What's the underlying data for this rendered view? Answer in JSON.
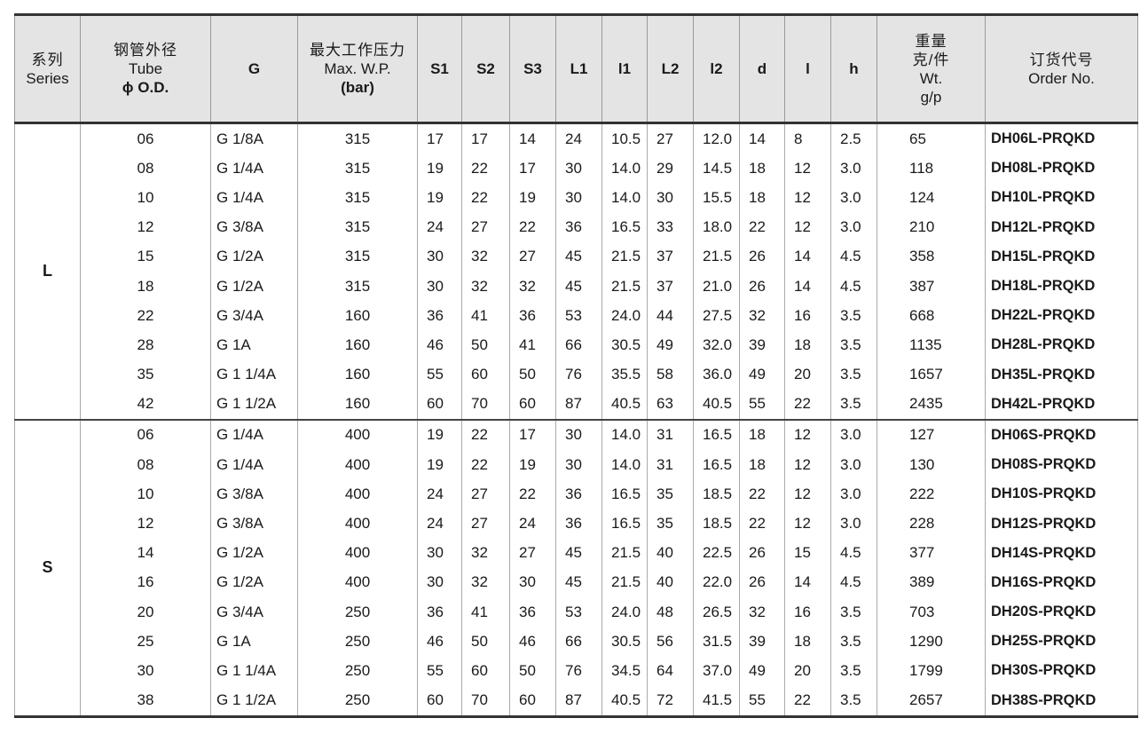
{
  "headers": {
    "series": [
      "系列",
      "Series"
    ],
    "tube": [
      "钢管外径",
      "Tube",
      "ϕ O.D."
    ],
    "g": "G",
    "wp": [
      "最大工作压力",
      "Max. W.P.",
      "(bar)"
    ],
    "s1": "S1",
    "s2": "S2",
    "s3": "S3",
    "L1": "L1",
    "l1": "l1",
    "L2": "L2",
    "l2": "l2",
    "d": "d",
    "l": "l",
    "h": "h",
    "wt": [
      "重量",
      "克/件",
      "Wt.",
      "g/p"
    ],
    "order": [
      "订货代号",
      "Order No."
    ]
  },
  "groups": [
    {
      "series": "L",
      "rows": [
        [
          "06",
          "G 1/8A",
          "315",
          "17",
          "17",
          "14",
          "24",
          "10.5",
          "27",
          "12.0",
          "14",
          "8",
          "2.5",
          "65",
          "DH06L-PRQKD"
        ],
        [
          "08",
          "G 1/4A",
          "315",
          "19",
          "22",
          "17",
          "30",
          "14.0",
          "29",
          "14.5",
          "18",
          "12",
          "3.0",
          "118",
          "DH08L-PRQKD"
        ],
        [
          "10",
          "G 1/4A",
          "315",
          "19",
          "22",
          "19",
          "30",
          "14.0",
          "30",
          "15.5",
          "18",
          "12",
          "3.0",
          "124",
          "DH10L-PRQKD"
        ],
        [
          "12",
          "G 3/8A",
          "315",
          "24",
          "27",
          "22",
          "36",
          "16.5",
          "33",
          "18.0",
          "22",
          "12",
          "3.0",
          "210",
          "DH12L-PRQKD"
        ],
        [
          "15",
          "G 1/2A",
          "315",
          "30",
          "32",
          "27",
          "45",
          "21.5",
          "37",
          "21.5",
          "26",
          "14",
          "4.5",
          "358",
          "DH15L-PRQKD"
        ],
        [
          "18",
          "G 1/2A",
          "315",
          "30",
          "32",
          "32",
          "45",
          "21.5",
          "37",
          "21.0",
          "26",
          "14",
          "4.5",
          "387",
          "DH18L-PRQKD"
        ],
        [
          "22",
          "G 3/4A",
          "160",
          "36",
          "41",
          "36",
          "53",
          "24.0",
          "44",
          "27.5",
          "32",
          "16",
          "3.5",
          "668",
          "DH22L-PRQKD"
        ],
        [
          "28",
          "G 1A",
          "160",
          "46",
          "50",
          "41",
          "66",
          "30.5",
          "49",
          "32.0",
          "39",
          "18",
          "3.5",
          "1135",
          "DH28L-PRQKD"
        ],
        [
          "35",
          "G 1 1/4A",
          "160",
          "55",
          "60",
          "50",
          "76",
          "35.5",
          "58",
          "36.0",
          "49",
          "20",
          "3.5",
          "1657",
          "DH35L-PRQKD"
        ],
        [
          "42",
          "G 1 1/2A",
          "160",
          "60",
          "70",
          "60",
          "87",
          "40.5",
          "63",
          "40.5",
          "55",
          "22",
          "3.5",
          "2435",
          "DH42L-PRQKD"
        ]
      ]
    },
    {
      "series": "S",
      "rows": [
        [
          "06",
          "G 1/4A",
          "400",
          "19",
          "22",
          "17",
          "30",
          "14.0",
          "31",
          "16.5",
          "18",
          "12",
          "3.0",
          "127",
          "DH06S-PRQKD"
        ],
        [
          "08",
          "G 1/4A",
          "400",
          "19",
          "22",
          "19",
          "30",
          "14.0",
          "31",
          "16.5",
          "18",
          "12",
          "3.0",
          "130",
          "DH08S-PRQKD"
        ],
        [
          "10",
          "G 3/8A",
          "400",
          "24",
          "27",
          "22",
          "36",
          "16.5",
          "35",
          "18.5",
          "22",
          "12",
          "3.0",
          "222",
          "DH10S-PRQKD"
        ],
        [
          "12",
          "G 3/8A",
          "400",
          "24",
          "27",
          "24",
          "36",
          "16.5",
          "35",
          "18.5",
          "22",
          "12",
          "3.0",
          "228",
          "DH12S-PRQKD"
        ],
        [
          "14",
          "G 1/2A",
          "400",
          "30",
          "32",
          "27",
          "45",
          "21.5",
          "40",
          "22.5",
          "26",
          "15",
          "4.5",
          "377",
          "DH14S-PRQKD"
        ],
        [
          "16",
          "G 1/2A",
          "400",
          "30",
          "32",
          "30",
          "45",
          "21.5",
          "40",
          "22.0",
          "26",
          "14",
          "4.5",
          "389",
          "DH16S-PRQKD"
        ],
        [
          "20",
          "G 3/4A",
          "250",
          "36",
          "41",
          "36",
          "53",
          "24.0",
          "48",
          "26.5",
          "32",
          "16",
          "3.5",
          "703",
          "DH20S-PRQKD"
        ],
        [
          "25",
          "G 1A",
          "250",
          "46",
          "50",
          "46",
          "66",
          "30.5",
          "56",
          "31.5",
          "39",
          "18",
          "3.5",
          "1290",
          "DH25S-PRQKD"
        ],
        [
          "30",
          "G 1 1/4A",
          "250",
          "55",
          "60",
          "50",
          "76",
          "34.5",
          "64",
          "37.0",
          "49",
          "20",
          "3.5",
          "1799",
          "DH30S-PRQKD"
        ],
        [
          "38",
          "G 1 1/2A",
          "250",
          "60",
          "70",
          "60",
          "87",
          "40.5",
          "72",
          "41.5",
          "55",
          "22",
          "3.5",
          "2657",
          "DH38S-PRQKD"
        ]
      ]
    }
  ]
}
